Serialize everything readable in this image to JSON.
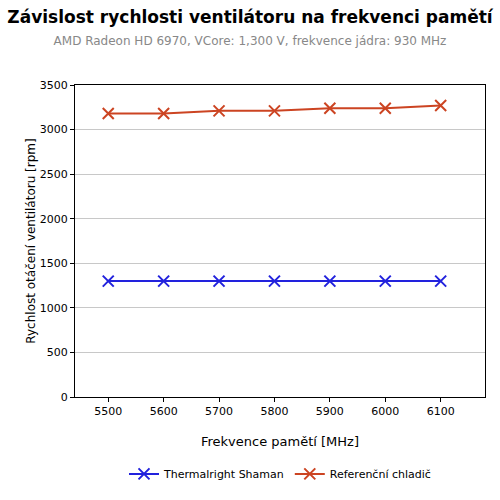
{
  "chart_data": {
    "type": "line",
    "title": "Závislost rychlosti ventilátoru na frekvenci pamětí",
    "subtitle": "AMD Radeon HD 6970, VCore: 1,300 V, frekvence jádra: 930 MHz",
    "x_label": "Frekvence pamětí [MHz]",
    "y_label": "Rychlost otáčení ventilátoru [rpm]",
    "x": [
      5500,
      5600,
      5700,
      5800,
      5900,
      6000,
      6100
    ],
    "series": [
      {
        "name": "Thermalright Shaman",
        "color": "#2222dd",
        "marker": "x",
        "line_style": "solid",
        "values": [
          1300,
          1300,
          1300,
          1300,
          1300,
          1300,
          1300
        ]
      },
      {
        "name": "Referenční chladič",
        "color": "#cc4422",
        "marker": "x",
        "line_style": "solid",
        "values": [
          3180,
          3180,
          3210,
          3210,
          3240,
          3240,
          3270
        ]
      }
    ],
    "xlim": [
      5440,
      6180
    ],
    "xticks": [
      5500,
      5600,
      5700,
      5800,
      5900,
      6000,
      6100
    ],
    "ylim": [
      0,
      3500
    ],
    "yticks": [
      0,
      500,
      1000,
      1500,
      2000,
      2500,
      3000,
      3500
    ],
    "grid": true,
    "legend": "bottom"
  }
}
